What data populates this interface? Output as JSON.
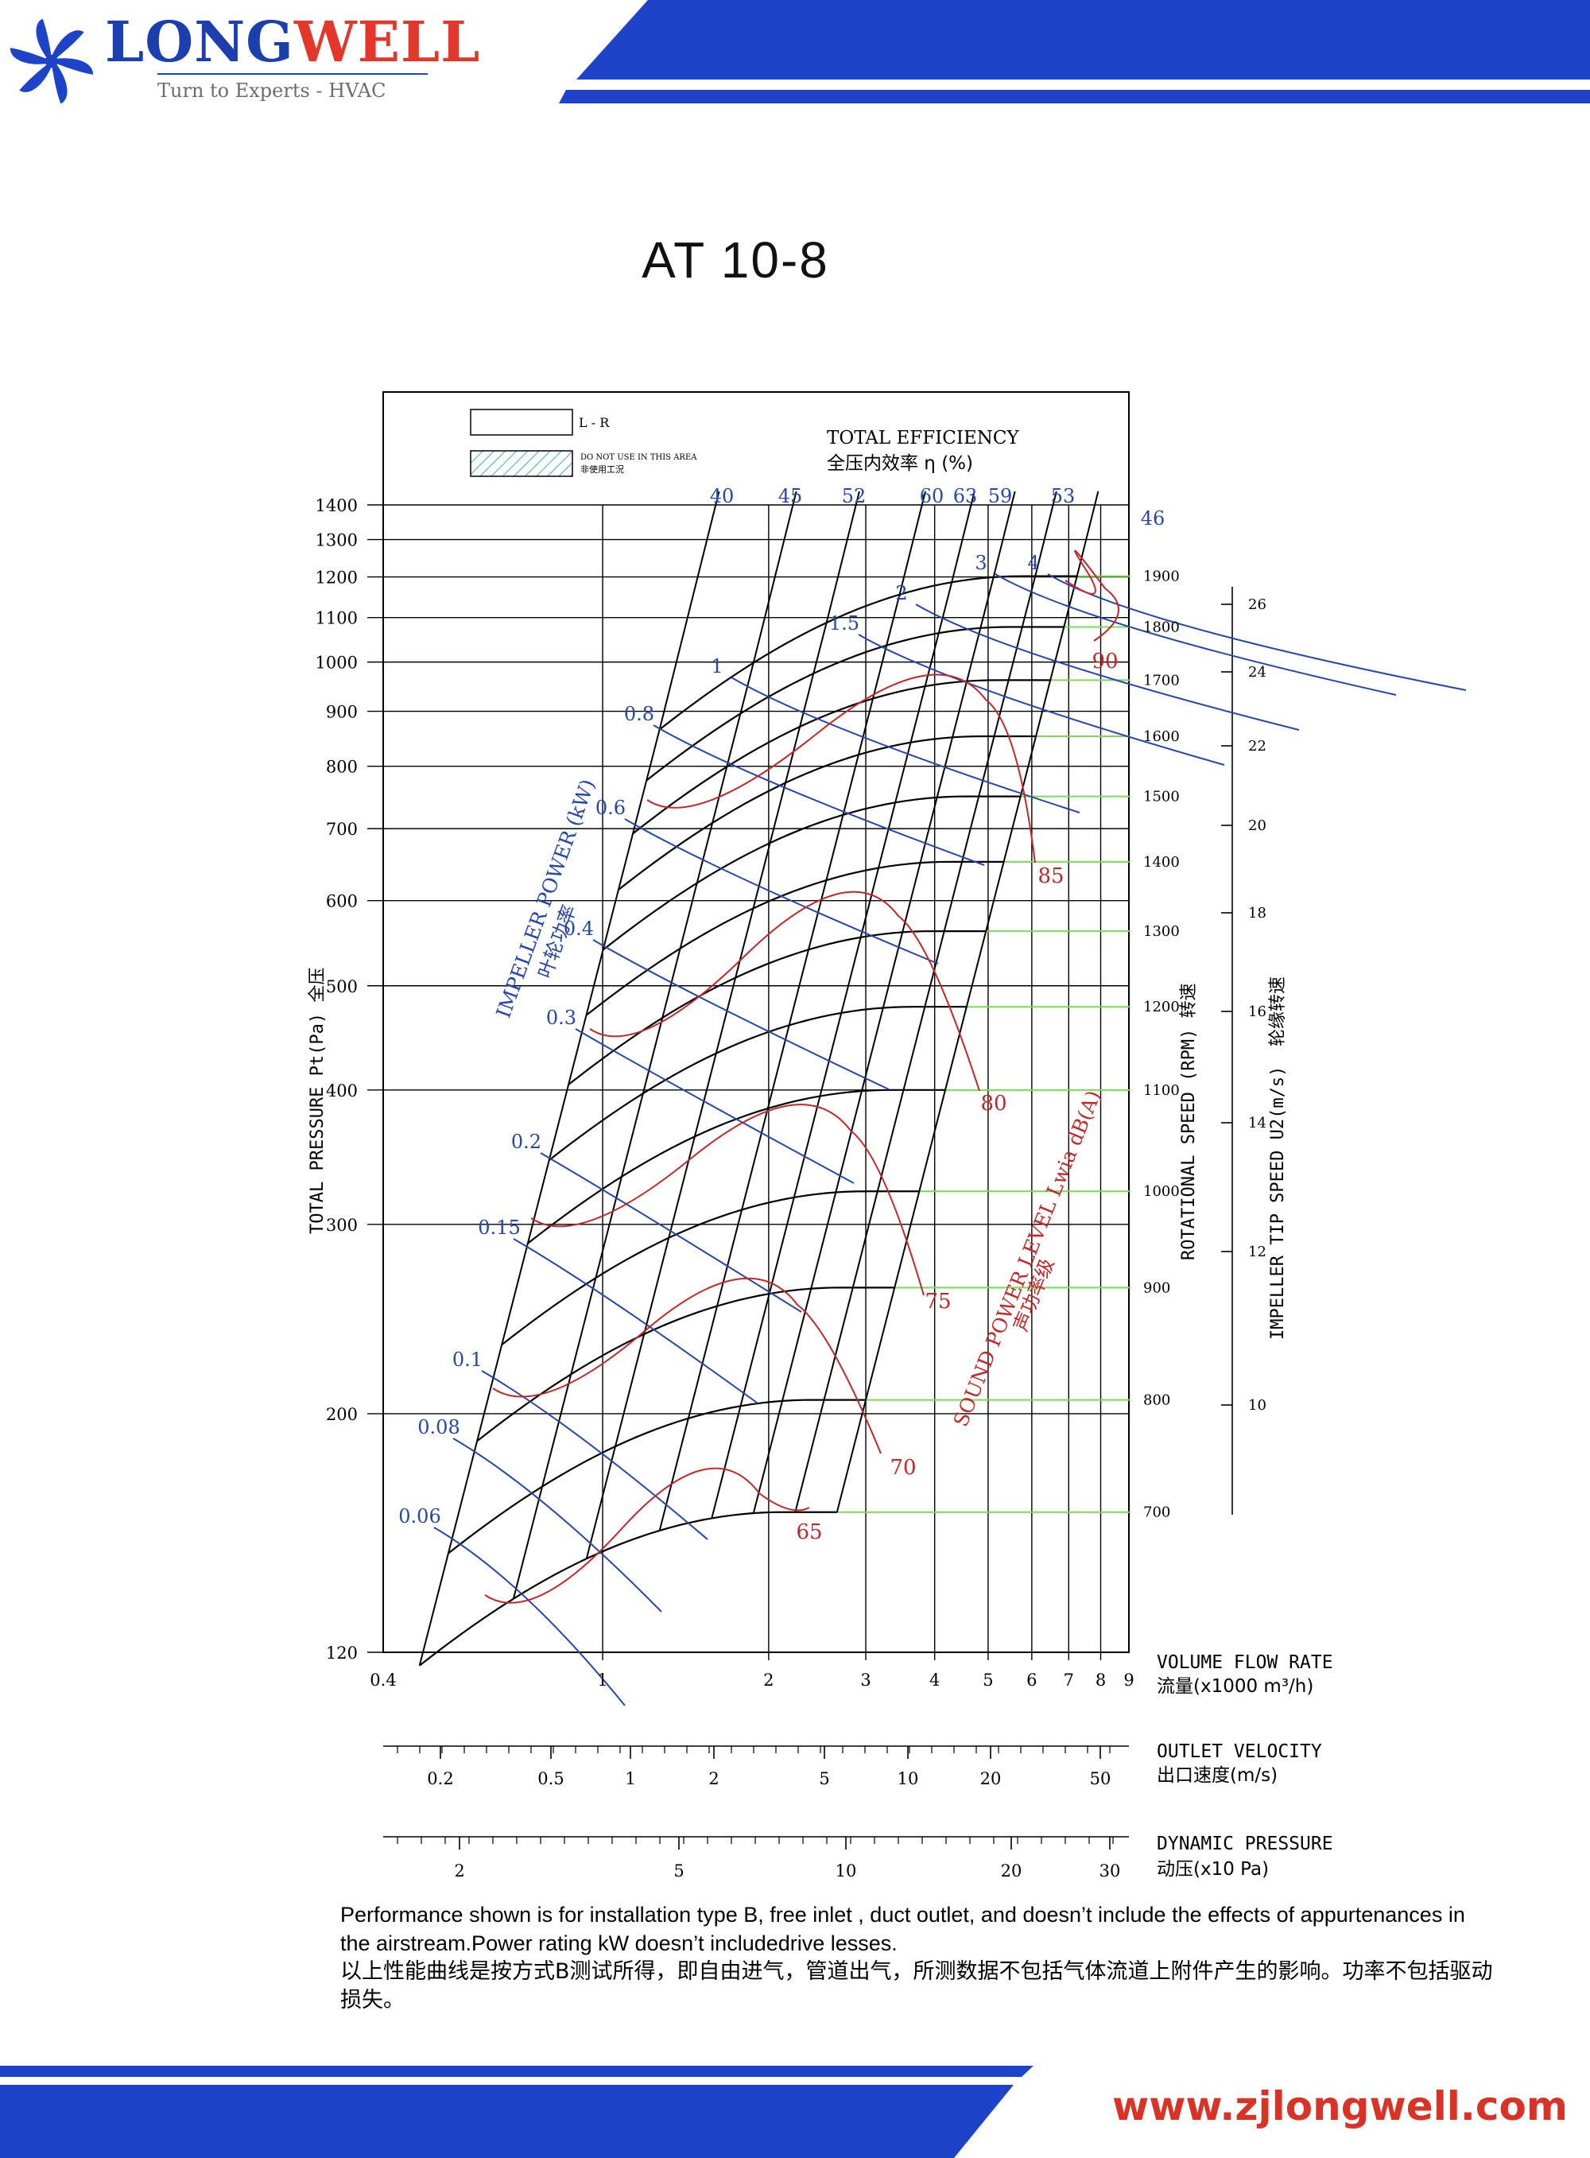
{
  "header": {
    "brand_part1": "LONG",
    "brand_part2": "WELL",
    "tagline": "Turn to Experts - HVAC",
    "brand_blue": "#1b3fae",
    "brand_red": "#e2372a"
  },
  "title": "AT  10-8",
  "legend": {
    "lr": "L - R",
    "do_not_use_en": "DO NOT USE IN THIS AREA",
    "do_not_use_zh": "非使用工況"
  },
  "labels": {
    "efficiency_en": "TOTAL EFFICIENCY",
    "efficiency_zh": "全压内效率  η (%)",
    "impeller_power_en": "IMPELLER POWER (kW)",
    "impeller_power_zh": "叶轮功率",
    "sound_en": "SOUND POWER LEVEL Lwia dB(A)",
    "sound_zh": "声功率级",
    "total_pressure": "TOTAL PRESSURE Pt(Pa)  全压",
    "rotational_speed": "ROTATIONAL SPEED (RPM) 转速",
    "tip_speed_en": "IMPELLER TIP SPEED U2(m/s)",
    "tip_speed_zh": "轮缘转速",
    "volume_flow_en": "VOLUME FLOW RATE",
    "volume_flow_zh": "流量(x1000 m³/h)",
    "outlet_velocity_en": "OUTLET VELOCITY",
    "outlet_velocity_zh": "出口速度(m/s)",
    "dynamic_pressure_en": "DYNAMIC PRESSURE",
    "dynamic_pressure_zh": "动压(x10 Pa)"
  },
  "chart_data": {
    "type": "line",
    "x_scale": "log",
    "y_scale": "log",
    "xlim": [
      0.4,
      9
    ],
    "ylim": [
      120,
      1400
    ],
    "x_ticks": [
      "0.4",
      "1",
      "2",
      "3",
      "4",
      "5",
      "6",
      "7",
      "8",
      "9"
    ],
    "y_ticks": [
      "120",
      "200",
      "300",
      "400",
      "500",
      "600",
      "700",
      "800",
      "900",
      "1000",
      "1100",
      "1200",
      "1300",
      "1400"
    ],
    "rpm_lines": [
      {
        "rpm": "700",
        "pt": 162
      },
      {
        "rpm": "800",
        "pt": 206
      },
      {
        "rpm": "900",
        "pt": 262
      },
      {
        "rpm": "1000",
        "pt": 322
      },
      {
        "rpm": "1100",
        "pt": 400
      },
      {
        "rpm": "1200",
        "pt": 478
      },
      {
        "rpm": "1300",
        "pt": 562
      },
      {
        "rpm": "1400",
        "pt": 652
      },
      {
        "rpm": "1500",
        "pt": 750
      },
      {
        "rpm": "1600",
        "pt": 853
      },
      {
        "rpm": "1700",
        "pt": 962
      },
      {
        "rpm": "1800",
        "pt": 1078
      },
      {
        "rpm": "1900",
        "pt": 1202
      }
    ],
    "efficiency_lines": [
      "40",
      "45",
      "52",
      "60",
      "63",
      "59",
      "53",
      "46"
    ],
    "power_labels": [
      "0.06",
      "0.08",
      "0.1",
      "0.15",
      "0.2",
      "0.3",
      "0.4",
      "0.6",
      "0.8",
      "1",
      "1.5",
      "2",
      "3",
      "4"
    ],
    "sound_labels": [
      "65",
      "70",
      "75",
      "80",
      "85",
      "90"
    ],
    "tip_speed_ticks": [
      "10",
      "12",
      "14",
      "16",
      "18",
      "20",
      "22",
      "24",
      "26"
    ],
    "outlet_velocity_ticks": [
      "0.2",
      "0.5",
      "1",
      "2",
      "5",
      "10",
      "20",
      "50"
    ],
    "dynamic_pressure_ticks": [
      "2",
      "5",
      "10",
      "20",
      "30"
    ],
    "colors": {
      "rpm_curve": "#000000",
      "power": "#2747a8",
      "sound": "#c0282a",
      "speed_guide": "#7ed957"
    }
  },
  "footer": {
    "note_en": "Performance shown is for installation type B, free inlet , duct outlet, and doesn’t include the effects of appurtenances in the airstream.Power rating kW doesn’t includedrive lesses.",
    "note_zh": "以上性能曲线是按方式B测试所得，即自由进气，管道出气，所测数据不包括气体流道上附件产生的影响。功率不包括驱动损失。",
    "website": "www.zjlongwell.com"
  }
}
